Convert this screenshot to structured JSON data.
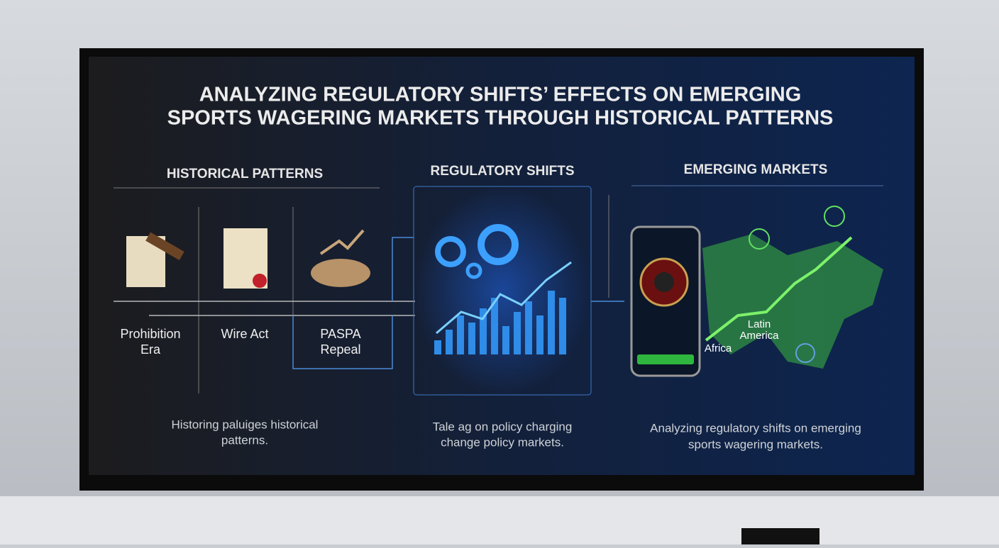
{
  "title_lines": [
    "ANALYZING REGULATORY SHIFTS’ EFFECTS ON EMERGING",
    "SPORTS WAGERING MARKETS THROUGH HISTORICAL PATTERNS"
  ],
  "sections": [
    {
      "heading": "HISTORICAL PATTERNS",
      "caption_lines": [
        "Historing paluiges historical",
        "patterns."
      ]
    },
    {
      "heading": "REGULATORY SHIFTS",
      "caption_lines": [
        "Tale ag on policy charging",
        "change policy markets."
      ]
    },
    {
      "heading": "EMERGING MARKETS",
      "caption_lines": [
        "Analyzing regulatory shifts on emerging",
        "sports wagering markets."
      ]
    }
  ],
  "timeline": [
    {
      "label_lines": [
        "Prohibition",
        "Era"
      ]
    },
    {
      "label_lines": [
        "Wire Act"
      ]
    },
    {
      "label_lines": [
        "PASPA",
        "Repeal"
      ]
    }
  ],
  "map_labels": {
    "latin_america_lines": [
      "Latin",
      "America"
    ],
    "africa": "Africa"
  }
}
